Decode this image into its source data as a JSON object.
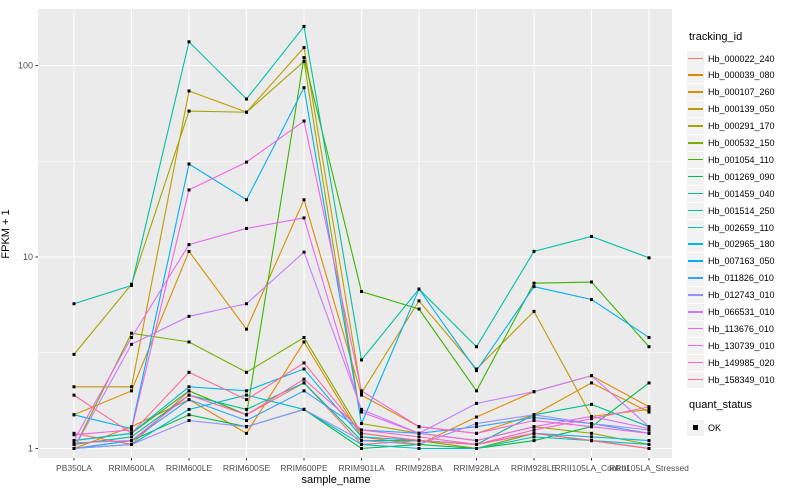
{
  "chart_data": {
    "type": "line",
    "xlabel": "sample_name",
    "ylabel": "FPKM + 1",
    "y_scale": "log10",
    "y_ticks": [
      1,
      10,
      100
    ],
    "y_minor_ticks": [
      3.1623,
      31.623
    ],
    "ylim": [
      0.95,
      195
    ],
    "panel_bg": "#EBEBEB",
    "grid_color": "#FFFFFF",
    "point_color": "#000000",
    "legend_title": "tracking_id",
    "legend_position": "right",
    "x_categories": [
      "PB350LA",
      "RRIM600LA",
      "RRIM600LE",
      "RRIM600SE",
      "RRIM600PE",
      "RRIM901LA",
      "RRIM928BA",
      "RRIM928LA",
      "RRIM928LE",
      "RRII105LA_Control",
      "RRII105LA_Stressed"
    ],
    "series": [
      {
        "name": "Hb_000022_240",
        "color": "#F8766D",
        "values": [
          1.2,
          1.05,
          2.0,
          1.5,
          2.2,
          1.05,
          1.1,
          1.0,
          1.2,
          1.1,
          1.0
        ]
      },
      {
        "name": "Hb_000039_080",
        "color": "#E58700",
        "values": [
          1.0,
          1.3,
          1.8,
          1.2,
          3.6,
          1.15,
          1.05,
          1.46,
          1.98,
          2.4,
          1.65
        ]
      },
      {
        "name": "Hb_000107_260",
        "color": "#D89000",
        "values": [
          1.5,
          2.0,
          10.7,
          4.2,
          19.9,
          1.9,
          1.3,
          1.2,
          1.5,
          2.2,
          1.55
        ]
      },
      {
        "name": "Hb_000139_050",
        "color": "#C09B00",
        "values": [
          2.1,
          2.1,
          73.6,
          57.1,
          124,
          1.95,
          5.9,
          2.6,
          5.2,
          1.47,
          1.6
        ]
      },
      {
        "name": "Hb_000291_170",
        "color": "#A3A500",
        "values": [
          3.1,
          7.2,
          57.8,
          57.0,
          105,
          1.35,
          1.2,
          1.1,
          1.3,
          1.2,
          1.05
        ]
      },
      {
        "name": "Hb_000532_150",
        "color": "#7CAE00",
        "values": [
          1.0,
          4.0,
          3.6,
          2.5,
          3.8,
          1.2,
          1.1,
          1.0,
          1.2,
          1.1,
          1.0
        ]
      },
      {
        "name": "Hb_001054_110",
        "color": "#39B600",
        "values": [
          1.1,
          1.2,
          2.0,
          1.5,
          110,
          6.6,
          5.35,
          2.0,
          7.3,
          7.4,
          3.4
        ]
      },
      {
        "name": "Hb_001269_090",
        "color": "#00BB4E",
        "values": [
          1.0,
          1.1,
          1.5,
          1.3,
          1.6,
          1.0,
          1.05,
          1.0,
          1.1,
          1.3,
          2.2
        ]
      },
      {
        "name": "Hb_001459_040",
        "color": "#00C08B",
        "values": [
          1.05,
          1.15,
          1.9,
          1.6,
          2.2,
          1.1,
          1.1,
          1.05,
          1.5,
          1.7,
          1.3
        ]
      },
      {
        "name": "Hb_001514_250",
        "color": "#00C1A3",
        "values": [
          5.7,
          7.1,
          133,
          66.8,
          160,
          2.9,
          6.8,
          3.4,
          10.7,
          12.8,
          9.9
        ]
      },
      {
        "name": "Hb_002659_110",
        "color": "#00BFC4",
        "values": [
          1.0,
          1.05,
          1.6,
          1.9,
          1.6,
          1.05,
          1.0,
          1.0,
          1.15,
          1.1,
          1.05
        ]
      },
      {
        "name": "Hb_002965_180",
        "color": "#00B8E5",
        "values": [
          1.1,
          1.2,
          2.1,
          2.0,
          2.6,
          1.15,
          1.1,
          1.05,
          1.2,
          1.15,
          1.1
        ]
      },
      {
        "name": "Hb_007163_050",
        "color": "#00B0F6",
        "values": [
          1.5,
          1.27,
          30.6,
          19.9,
          76.6,
          1.35,
          6.8,
          2.55,
          7.0,
          6.0,
          3.8
        ]
      },
      {
        "name": "Hb_011826_010",
        "color": "#35A2FF",
        "values": [
          1.0,
          1.1,
          1.8,
          1.4,
          2.0,
          1.25,
          1.2,
          1.3,
          1.45,
          1.35,
          1.2
        ]
      },
      {
        "name": "Hb_012743_010",
        "color": "#9590FF",
        "values": [
          1.0,
          1.05,
          1.4,
          1.3,
          1.6,
          1.1,
          1.05,
          1.35,
          1.5,
          1.35,
          1.25
        ]
      },
      {
        "name": "Hb_066531_010",
        "color": "#C77CFF",
        "values": [
          1.0,
          3.5,
          4.9,
          5.7,
          10.6,
          1.6,
          1.2,
          1.72,
          1.98,
          2.4,
          1.3
        ]
      },
      {
        "name": "Hb_113676_010",
        "color": "#E76BF3",
        "values": [
          1.1,
          3.8,
          11.6,
          14.1,
          16.0,
          1.55,
          1.2,
          1.1,
          1.3,
          1.47,
          1.27
        ]
      },
      {
        "name": "Hb_130739_010",
        "color": "#F763E0",
        "values": [
          1.18,
          1.25,
          22.4,
          31.3,
          51.3,
          2.0,
          1.3,
          1.2,
          1.4,
          1.3,
          1.2
        ]
      },
      {
        "name": "Hb_149985_020",
        "color": "#FF61C7",
        "values": [
          1.07,
          1.1,
          1.9,
          1.5,
          2.3,
          1.25,
          1.15,
          1.05,
          1.25,
          1.43,
          1.65
        ]
      },
      {
        "name": "Hb_158349_010",
        "color": "#FF6A98",
        "values": [
          1.9,
          1.2,
          2.5,
          1.8,
          2.8,
          1.2,
          1.1,
          1.05,
          1.2,
          1.1,
          1.0
        ]
      }
    ],
    "quant_status": {
      "title": "quant_status",
      "items": [
        {
          "label": "OK",
          "marker": "black-square"
        }
      ]
    }
  }
}
